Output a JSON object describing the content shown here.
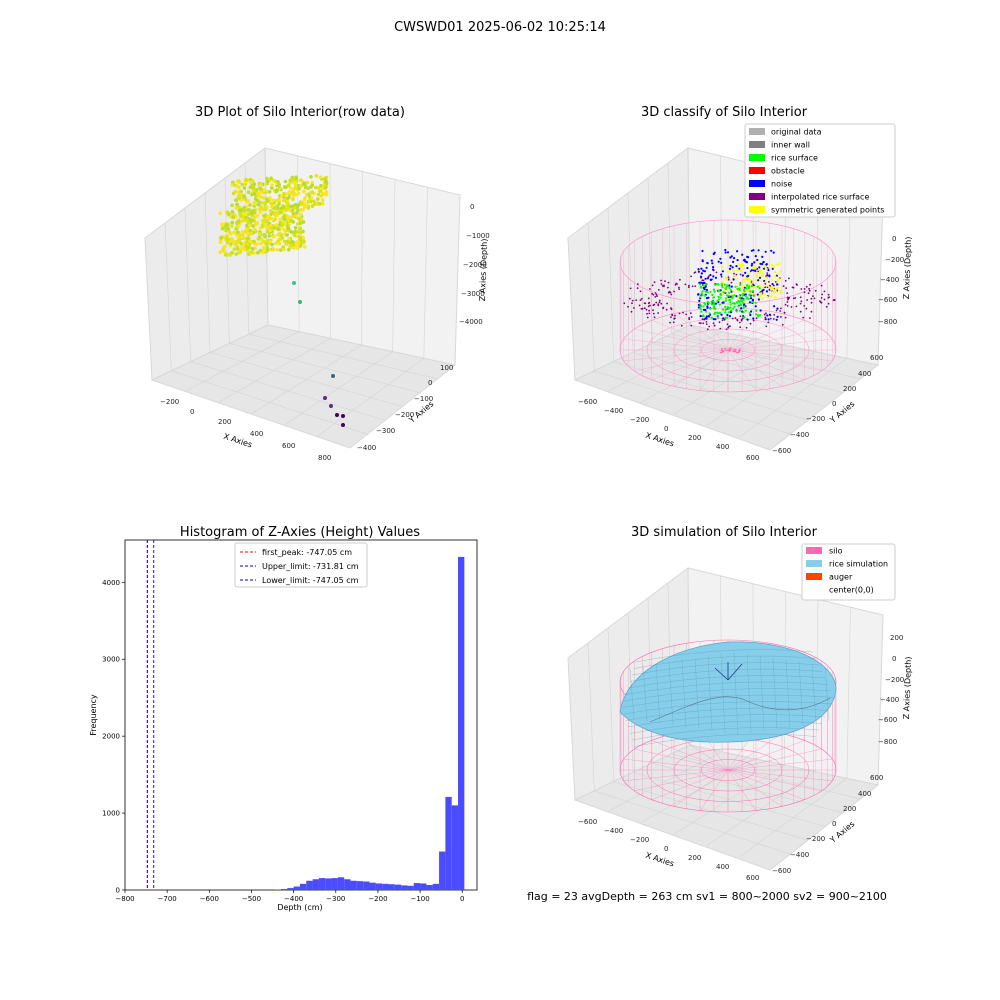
{
  "figure_title": "CWSWD01 2025-06-02 10:25:14",
  "colors": {
    "histogram_bar": "#4b4bff",
    "first_peak_line": "#ff0000",
    "limit_line": "#0000cc",
    "silo": "#ff69b4",
    "rice_simulation": "#87ceeb",
    "auger": "#ff4500",
    "original_data": "#b0b0b0",
    "inner_wall": "#808080",
    "rice_surface": "#00ff00",
    "obstacle": "#ff0000",
    "noise": "#0000ff",
    "interpolated_rice_surface": "#800080",
    "symmetric_generated_points": "#ffff00"
  },
  "panels": {
    "raw": {
      "title": "3D Plot of Silo Interior(row data)",
      "xlabel": "X Axies",
      "ylabel": "Y Axies",
      "zlabel": "Z Axies (Depth)",
      "xticks": [
        "−200",
        "0",
        "200",
        "400",
        "600",
        "800"
      ],
      "yticks": [
        "100",
        "0",
        "−100",
        "−200",
        "−300",
        "−400"
      ],
      "zticks": [
        "0",
        "−1000",
        "−2000",
        "−3000",
        "−4000"
      ]
    },
    "classify": {
      "title": "3D classify of Silo Interior",
      "xlabel": "X Axies",
      "ylabel": "Y Axies",
      "zlabel": "Z Axies (Depth)",
      "xticks": [
        "−600",
        "−400",
        "−200",
        "0",
        "200",
        "400",
        "600"
      ],
      "yticks": [
        "600",
        "400",
        "200",
        "0",
        "−200",
        "−400",
        "−600"
      ],
      "zticks": [
        "0",
        "−200",
        "−400",
        "−600",
        "−800"
      ],
      "legend": [
        "original data",
        "inner wall",
        "rice surface",
        "obstacle",
        "noise",
        "interpolated rice surface",
        "symmetric generated points"
      ]
    },
    "simulation": {
      "title": "3D simulation of Silo Interior",
      "xlabel": "X Axies",
      "ylabel": "Y Axies",
      "zlabel": "Z Axies (Depth)",
      "xticks": [
        "−600",
        "−400",
        "−200",
        "0",
        "200",
        "400",
        "600"
      ],
      "yticks": [
        "600",
        "400",
        "200",
        "0",
        "−200",
        "−400",
        "−600"
      ],
      "zticks": [
        "200",
        "0",
        "−200",
        "−400",
        "−600",
        "−800"
      ],
      "legend": [
        "silo",
        "rice simulation",
        "auger",
        "center(0,0)"
      ]
    }
  },
  "status_line": "flag = 23   avgDepth = 263 cm   sv1 = 800~2000   sv2 = 900~2100",
  "chart_data": {
    "type": "bar",
    "title": "Histogram of Z-Axies (Height) Values",
    "xlabel": "Depth (cm)",
    "ylabel": "Frequency",
    "xlim": [
      -800,
      35
    ],
    "ylim": [
      0,
      4550
    ],
    "xticks": [
      -800,
      -700,
      -600,
      -500,
      -400,
      -300,
      -200,
      -100,
      0
    ],
    "yticks": [
      0,
      1000,
      2000,
      3000,
      4000
    ],
    "bin_width": 15,
    "bins": [
      [
        -445,
        5
      ],
      [
        -430,
        12
      ],
      [
        -415,
        25
      ],
      [
        -400,
        45
      ],
      [
        -385,
        80
      ],
      [
        -370,
        120
      ],
      [
        -355,
        140
      ],
      [
        -340,
        155
      ],
      [
        -325,
        150
      ],
      [
        -310,
        155
      ],
      [
        -295,
        165
      ],
      [
        -280,
        140
      ],
      [
        -265,
        120
      ],
      [
        -250,
        115
      ],
      [
        -235,
        110
      ],
      [
        -220,
        95
      ],
      [
        -205,
        85
      ],
      [
        -190,
        80
      ],
      [
        -175,
        75
      ],
      [
        -160,
        70
      ],
      [
        -145,
        60
      ],
      [
        -130,
        55
      ],
      [
        -115,
        90
      ],
      [
        -100,
        85
      ],
      [
        -85,
        65
      ],
      [
        -70,
        80
      ],
      [
        -55,
        500
      ],
      [
        -40,
        1210
      ],
      [
        -25,
        1100
      ],
      [
        -10,
        4330
      ]
    ],
    "lines": [
      {
        "label": "first_peak: -747.05 cm",
        "x": -747.05,
        "style": "red-dashed"
      },
      {
        "label": "Upper_limit: -731.81 cm",
        "x": -731.81,
        "style": "blue-dashed"
      },
      {
        "label": "Lower_limit: -747.05 cm",
        "x": -747.05,
        "style": "blue-dashed"
      }
    ],
    "xtick_labels": [
      "−800",
      "−700",
      "−600",
      "−500",
      "−400",
      "−300",
      "−200",
      "−100",
      "0"
    ],
    "ytick_labels": [
      "0",
      "1000",
      "2000",
      "3000",
      "4000"
    ]
  }
}
